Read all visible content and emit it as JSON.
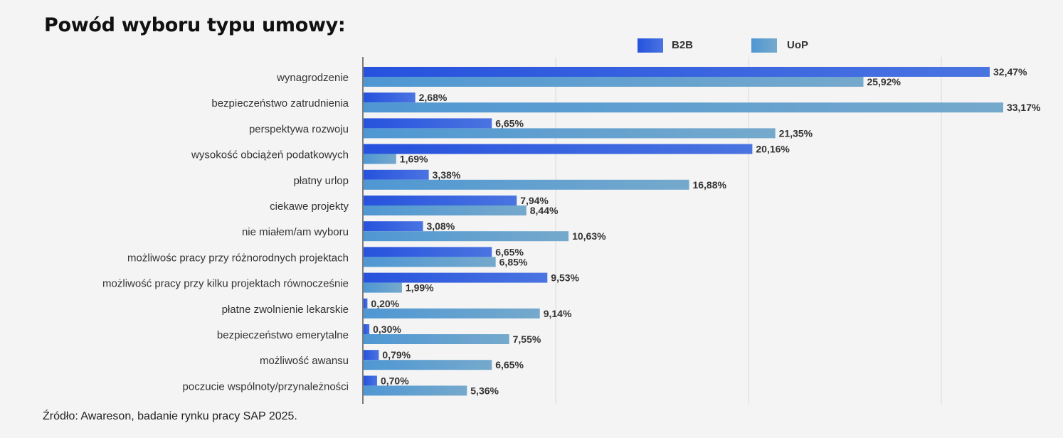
{
  "title": "Powód wyboru typu umowy:",
  "source": "Źródło: Awareson, badanie rynku pracy SAP 2025.",
  "colors": {
    "b2b": "#2f5ae0",
    "uop": "#5d9fd1",
    "grid": "#d9d9d9",
    "axis": "#555555"
  },
  "chart_data": {
    "type": "bar",
    "orientation": "horizontal",
    "title": "Powód wyboru typu umowy:",
    "legend_position": "top",
    "grid": true,
    "xlim": [
      0,
      33.5
    ],
    "categories": [
      "wynagrodzenie",
      "bezpieczeństwo zatrudnienia",
      "perspektywa rozwoju",
      "wysokość obciążeń podatkowych",
      "płatny urlop",
      "ciekawe projekty",
      "nie miałem/am wyboru",
      "możliwośc pracy przy różnorodnych projektach",
      "możliwość pracy przy kilku projektach równocześnie",
      "płatne zwolnienie lekarskie",
      "bezpieczeństwo emerytalne",
      "możliwość awansu",
      "poczucie wspólnoty/przynależności"
    ],
    "series": [
      {
        "name": "B2B",
        "values": [
          32.47,
          2.68,
          6.65,
          20.16,
          3.38,
          7.94,
          3.08,
          6.65,
          9.53,
          0.2,
          0.3,
          0.79,
          0.7
        ],
        "labels": [
          "32,47%",
          "2,68%",
          "6,65%",
          "20,16%",
          "3,38%",
          "7,94%",
          "3,08%",
          "6,65%",
          "9,53%",
          "0,20%",
          "0,30%",
          "0,79%",
          "0,70%"
        ]
      },
      {
        "name": "UoP",
        "values": [
          25.92,
          33.17,
          21.35,
          1.69,
          16.88,
          8.44,
          10.63,
          6.85,
          1.99,
          9.14,
          7.55,
          6.65,
          5.36
        ],
        "labels": [
          "25,92%",
          "33,17%",
          "21,35%",
          "1,69%",
          "16,88%",
          "8,44%",
          "10,63%",
          "6,85%",
          "1,99%",
          "9,14%",
          "7,55%",
          "6,65%",
          "5,36%"
        ]
      }
    ]
  }
}
